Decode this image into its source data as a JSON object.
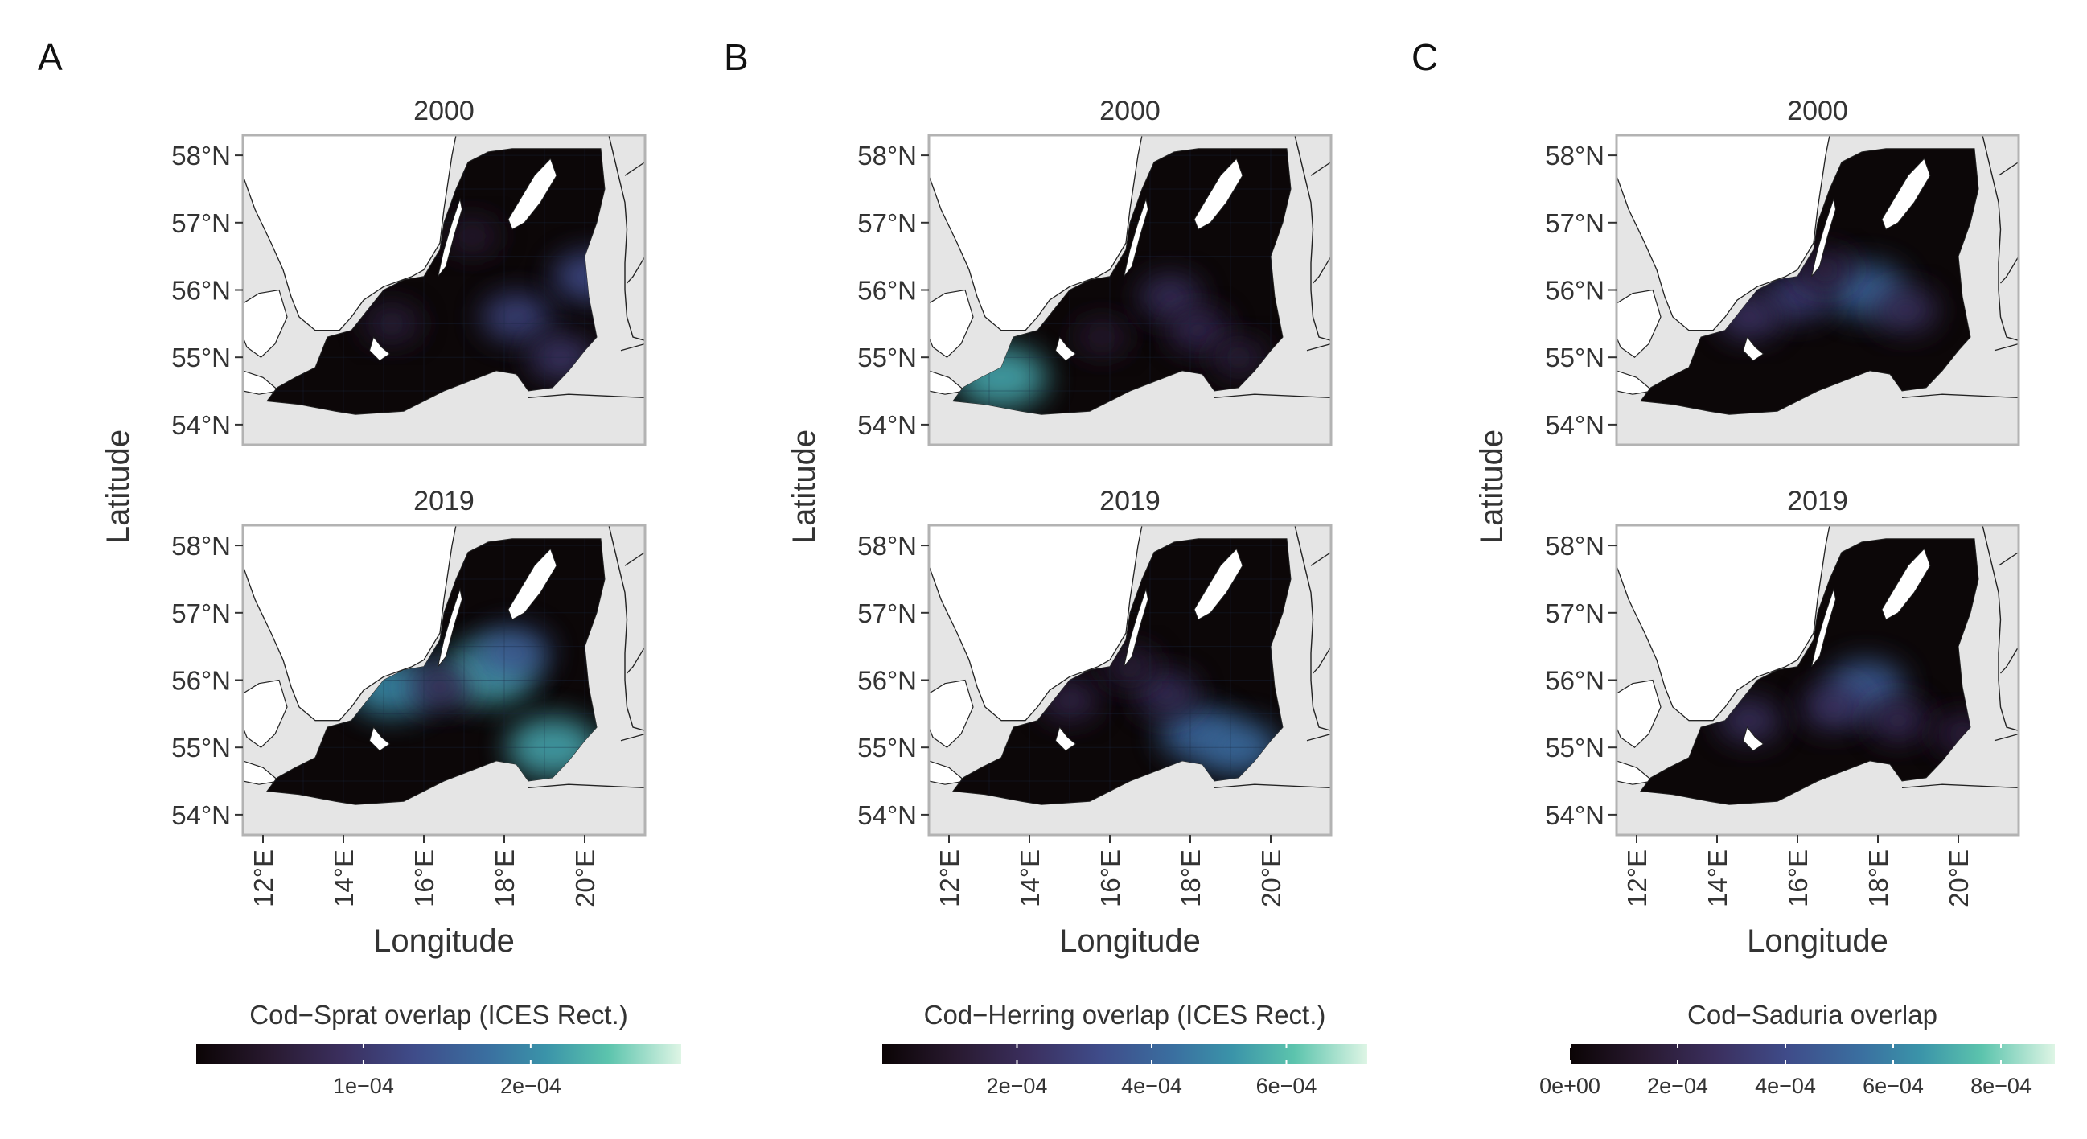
{
  "chart_data": [
    {
      "type": "heatmap",
      "panel_label": "A",
      "facets": [
        "2000",
        "2019"
      ],
      "xlabel": "Longitude",
      "ylabel": "Latitude",
      "x_ticks": [
        "12°E",
        "14°E",
        "16°E",
        "18°E",
        "20°E"
      ],
      "y_ticks": [
        "54°N",
        "55°N",
        "56°N",
        "57°N",
        "58°N"
      ],
      "xlim": [
        11.5,
        21.5
      ],
      "ylim": [
        53.7,
        58.3
      ],
      "legend": {
        "title": "Cod−Sprat overlap (ICES Rect.)",
        "range": [
          0,
          0.00029
        ],
        "ticks": [
          {
            "label": "1e−04",
            "value": 0.0001
          },
          {
            "label": "2e−04",
            "value": 0.0002
          }
        ]
      },
      "hotspots": [
        [
          {
            "lon": 18.3,
            "lat": 55.6,
            "value": 0.00012
          },
          {
            "lon": 20.1,
            "lat": 56.2,
            "value": 0.00013
          },
          {
            "lon": 19.4,
            "lat": 55.0,
            "value": 0.0001
          },
          {
            "lon": 15.2,
            "lat": 55.5,
            "value": 6e-05
          },
          {
            "lon": 17.2,
            "lat": 56.8,
            "value": 5e-05
          }
        ],
        [
          {
            "lon": 17.6,
            "lat": 56.1,
            "value": 0.00022
          },
          {
            "lon": 15.2,
            "lat": 55.9,
            "value": 0.0002
          },
          {
            "lon": 19.2,
            "lat": 55.0,
            "value": 0.00022
          },
          {
            "lon": 18.2,
            "lat": 56.4,
            "value": 0.00015
          },
          {
            "lon": 16.4,
            "lat": 55.9,
            "value": 9e-05
          }
        ]
      ]
    },
    {
      "type": "heatmap",
      "panel_label": "B",
      "facets": [
        "2000",
        "2019"
      ],
      "xlabel": "Longitude",
      "ylabel": "Latitude",
      "x_ticks": [
        "12°E",
        "14°E",
        "16°E",
        "18°E",
        "20°E"
      ],
      "y_ticks": [
        "54°N",
        "55°N",
        "56°N",
        "57°N",
        "58°N"
      ],
      "xlim": [
        11.5,
        21.5
      ],
      "ylim": [
        53.7,
        58.3
      ],
      "legend": {
        "title": "Cod−Herring overlap (ICES Rect.)",
        "range": [
          0,
          0.00072
        ],
        "ticks": [
          {
            "label": "2e−04",
            "value": 0.0002
          },
          {
            "label": "4e−04",
            "value": 0.0004
          },
          {
            "label": "6e−04",
            "value": 0.0006
          }
        ]
      },
      "hotspots": [
        [
          {
            "lon": 13.3,
            "lat": 54.7,
            "value": 0.00055
          },
          {
            "lon": 17.5,
            "lat": 55.9,
            "value": 0.00022
          },
          {
            "lon": 18.2,
            "lat": 55.4,
            "value": 0.0002
          },
          {
            "lon": 19.2,
            "lat": 55.0,
            "value": 0.00015
          },
          {
            "lon": 15.8,
            "lat": 55.3,
            "value": 0.00012
          }
        ],
        [
          {
            "lon": 18.2,
            "lat": 55.2,
            "value": 0.0004
          },
          {
            "lon": 19.2,
            "lat": 55.0,
            "value": 0.00042
          },
          {
            "lon": 17.4,
            "lat": 55.8,
            "value": 0.00022
          },
          {
            "lon": 15.0,
            "lat": 55.7,
            "value": 0.00018
          },
          {
            "lon": 16.5,
            "lat": 56.2,
            "value": 0.00015
          }
        ]
      ]
    },
    {
      "type": "heatmap",
      "panel_label": "C",
      "facets": [
        "2000",
        "2019"
      ],
      "xlabel": "Longitude",
      "ylabel": "Latitude",
      "x_ticks": [
        "12°E",
        "14°E",
        "16°E",
        "18°E",
        "20°E"
      ],
      "y_ticks": [
        "54°N",
        "55°N",
        "56°N",
        "57°N",
        "58°N"
      ],
      "xlim": [
        11.5,
        21.5
      ],
      "ylim": [
        53.7,
        58.3
      ],
      "legend": {
        "title": "Cod−Saduria overlap",
        "range": [
          0,
          0.0009
        ],
        "ticks": [
          {
            "label": "0e+00",
            "value": 0
          },
          {
            "label": "2e−04",
            "value": 0.0002
          },
          {
            "label": "4e−04",
            "value": 0.0004
          },
          {
            "label": "6e−04",
            "value": 0.0006
          },
          {
            "label": "8e−04",
            "value": 0.0008
          }
        ]
      },
      "hotspots": [
        [
          {
            "lon": 17.7,
            "lat": 56.0,
            "value": 0.0005
          },
          {
            "lon": 16.0,
            "lat": 55.9,
            "value": 0.00035
          },
          {
            "lon": 14.8,
            "lat": 55.6,
            "value": 0.0003
          },
          {
            "lon": 18.7,
            "lat": 55.7,
            "value": 0.00028
          },
          {
            "lon": 16.7,
            "lat": 56.3,
            "value": 0.0002
          }
        ],
        [
          {
            "lon": 17.7,
            "lat": 55.9,
            "value": 0.00048
          },
          {
            "lon": 16.9,
            "lat": 55.6,
            "value": 0.0003
          },
          {
            "lon": 14.8,
            "lat": 55.4,
            "value": 0.00028
          },
          {
            "lon": 18.5,
            "lat": 55.4,
            "value": 0.00025
          },
          {
            "lon": 20.1,
            "lat": 55.2,
            "value": 0.0002
          }
        ]
      ]
    }
  ]
}
